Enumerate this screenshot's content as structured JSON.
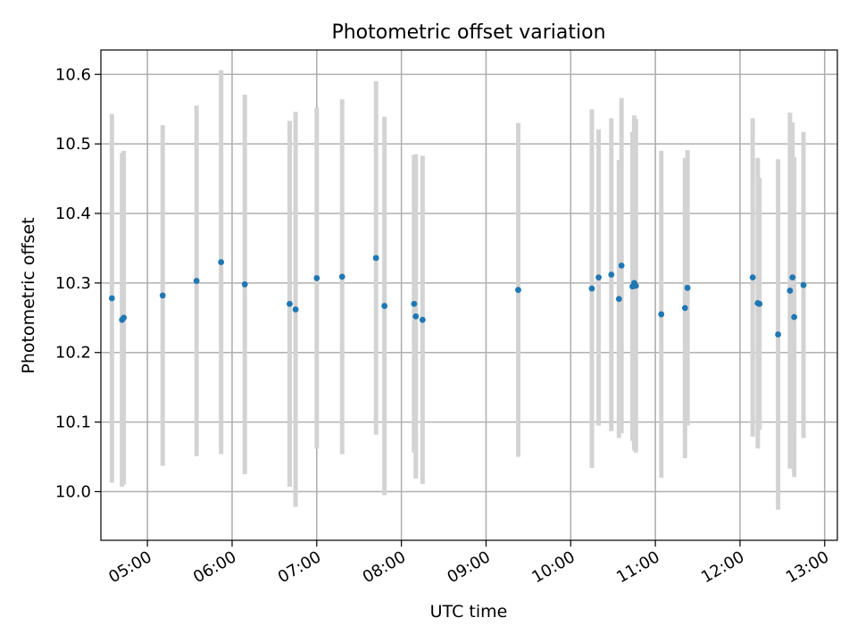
{
  "chart_data": {
    "type": "scatter",
    "title": "Photometric offset variation",
    "xlabel": "UTC time",
    "ylabel": "Photometric offset",
    "x_unit": "hours UTC",
    "xlim": [
      4.45,
      13.15
    ],
    "ylim": [
      9.93,
      10.635
    ],
    "grid": true,
    "x_ticks": [
      {
        "value": 5,
        "label": "05:00"
      },
      {
        "value": 6,
        "label": "06:00"
      },
      {
        "value": 7,
        "label": "07:00"
      },
      {
        "value": 8,
        "label": "08:00"
      },
      {
        "value": 9,
        "label": "09:00"
      },
      {
        "value": 10,
        "label": "10:00"
      },
      {
        "value": 11,
        "label": "11:00"
      },
      {
        "value": 12,
        "label": "12:00"
      },
      {
        "value": 13,
        "label": "13:00"
      }
    ],
    "y_ticks": [
      {
        "value": 10.0,
        "label": "10.0"
      },
      {
        "value": 10.1,
        "label": "10.1"
      },
      {
        "value": 10.2,
        "label": "10.2"
      },
      {
        "value": 10.3,
        "label": "10.3"
      },
      {
        "value": 10.4,
        "label": "10.4"
      },
      {
        "value": 10.5,
        "label": "10.5"
      },
      {
        "value": 10.6,
        "label": "10.6"
      }
    ],
    "point_color": "#1f77b4",
    "errorbar_color": "#d3d3d3",
    "points": [
      {
        "x": 4.58,
        "y": 10.278,
        "err": 0.265
      },
      {
        "x": 4.7,
        "y": 10.247,
        "err": 0.24
      },
      {
        "x": 4.72,
        "y": 10.25,
        "err": 0.24
      },
      {
        "x": 5.18,
        "y": 10.282,
        "err": 0.245
      },
      {
        "x": 5.58,
        "y": 10.303,
        "err": 0.252
      },
      {
        "x": 5.87,
        "y": 10.33,
        "err": 0.276
      },
      {
        "x": 6.15,
        "y": 10.298,
        "err": 0.273
      },
      {
        "x": 6.68,
        "y": 10.27,
        "err": 0.263
      },
      {
        "x": 6.75,
        "y": 10.262,
        "err": 0.284
      },
      {
        "x": 7.0,
        "y": 10.307,
        "err": 0.245
      },
      {
        "x": 7.3,
        "y": 10.309,
        "err": 0.255
      },
      {
        "x": 7.7,
        "y": 10.336,
        "err": 0.254
      },
      {
        "x": 7.8,
        "y": 10.267,
        "err": 0.272
      },
      {
        "x": 8.15,
        "y": 10.27,
        "err": 0.214
      },
      {
        "x": 8.17,
        "y": 10.252,
        "err": 0.233
      },
      {
        "x": 8.25,
        "y": 10.247,
        "err": 0.236
      },
      {
        "x": 9.38,
        "y": 10.29,
        "err": 0.24
      },
      {
        "x": 10.25,
        "y": 10.292,
        "err": 0.258
      },
      {
        "x": 10.33,
        "y": 10.308,
        "err": 0.213
      },
      {
        "x": 10.48,
        "y": 10.312,
        "err": 0.225
      },
      {
        "x": 10.57,
        "y": 10.277,
        "err": 0.2
      },
      {
        "x": 10.6,
        "y": 10.325,
        "err": 0.241
      },
      {
        "x": 10.73,
        "y": 10.295,
        "err": 0.222
      },
      {
        "x": 10.75,
        "y": 10.3,
        "err": 0.241
      },
      {
        "x": 10.77,
        "y": 10.296,
        "err": 0.24
      },
      {
        "x": 11.07,
        "y": 10.255,
        "err": 0.235
      },
      {
        "x": 11.35,
        "y": 10.264,
        "err": 0.216
      },
      {
        "x": 11.38,
        "y": 10.293,
        "err": 0.198
      },
      {
        "x": 12.15,
        "y": 10.308,
        "err": 0.229
      },
      {
        "x": 12.21,
        "y": 10.271,
        "err": 0.209
      },
      {
        "x": 12.23,
        "y": 10.27,
        "err": 0.181
      },
      {
        "x": 12.45,
        "y": 10.226,
        "err": 0.252
      },
      {
        "x": 12.59,
        "y": 10.289,
        "err": 0.256
      },
      {
        "x": 12.62,
        "y": 10.308,
        "err": 0.223
      },
      {
        "x": 12.64,
        "y": 10.251,
        "err": 0.23
      },
      {
        "x": 12.75,
        "y": 10.297,
        "err": 0.22
      }
    ]
  }
}
